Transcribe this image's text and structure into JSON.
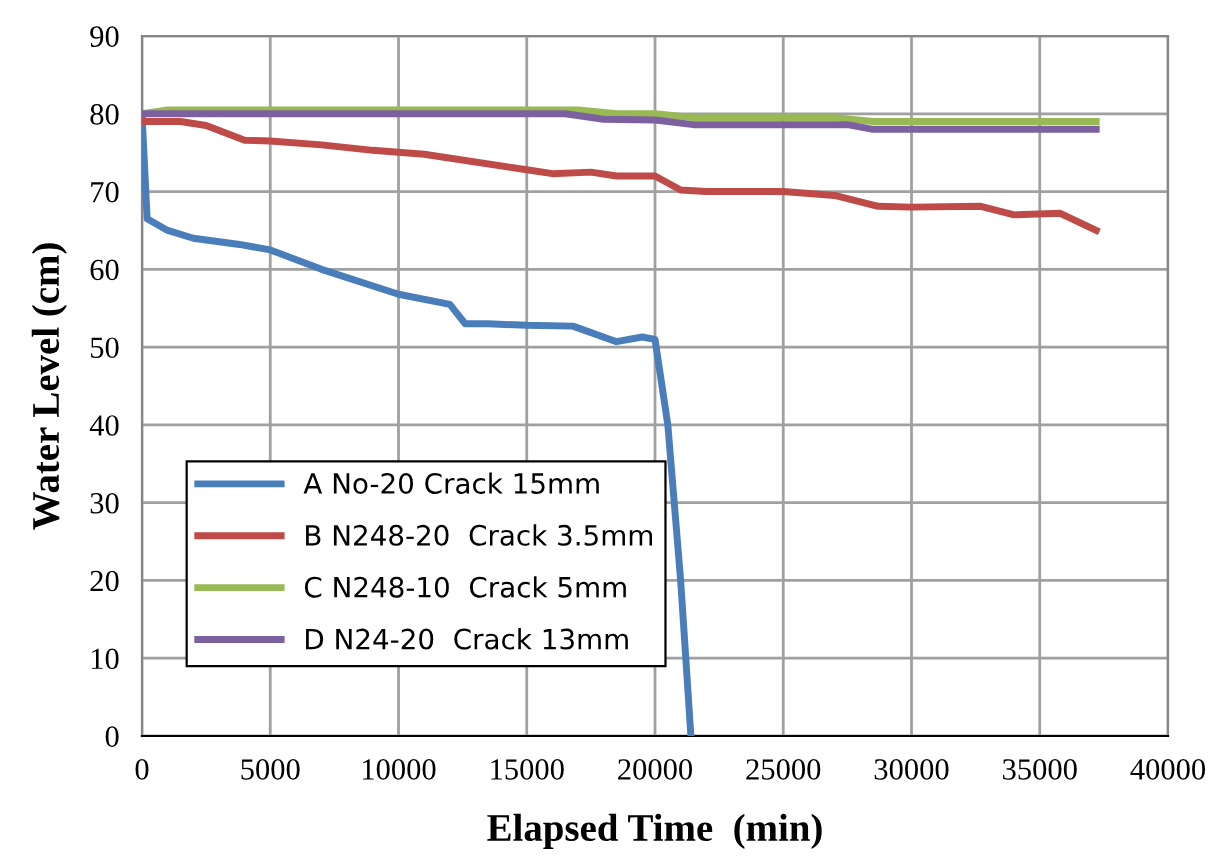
{
  "chart_data": {
    "type": "line",
    "xlabel": "Elapsed Time  (min)",
    "ylabel": "Water Level (cm)",
    "xlim": [
      0,
      40000
    ],
    "ylim": [
      0,
      90
    ],
    "xticks": [
      0,
      5000,
      10000,
      15000,
      20000,
      25000,
      30000,
      35000,
      40000
    ],
    "yticks": [
      0,
      10,
      20,
      30,
      40,
      50,
      60,
      70,
      80,
      90
    ],
    "grid": true,
    "legend": "bottom left",
    "marker": "none",
    "line_style": "solid",
    "series": [
      {
        "name": "A No-20 Crack 15mm",
        "color": "#4a7ebb",
        "x": [
          0,
          200,
          1000,
          2000,
          3800,
          5000,
          7000,
          10000,
          12000,
          12600,
          13500,
          15000,
          16800,
          18500,
          19500,
          20000,
          20500,
          21000,
          21400
        ],
        "values": [
          80,
          66.5,
          65,
          64,
          63.2,
          62.5,
          60,
          56.8,
          55.5,
          53,
          53,
          52.8,
          52.7,
          50.7,
          51.3,
          51,
          40,
          20,
          0
        ]
      },
      {
        "name": "B N248-20  Crack 3.5mm",
        "color": "#be4b48",
        "x": [
          0,
          1500,
          2500,
          4000,
          5000,
          7000,
          9000,
          11000,
          15000,
          16000,
          17500,
          18500,
          20000,
          21000,
          22000,
          25000,
          27000,
          28700,
          30000,
          32700,
          34000,
          35800,
          37200
        ],
        "values": [
          79,
          79,
          78.5,
          76.6,
          76.5,
          76,
          75.3,
          74.8,
          72.8,
          72.3,
          72.5,
          72,
          72,
          70.2,
          70,
          70,
          69.5,
          68.1,
          68,
          68.1,
          67,
          67.2,
          65
        ]
      },
      {
        "name": "C N248-10  Crack 5mm",
        "color": "#98b954",
        "x": [
          0,
          1000,
          17000,
          18500,
          20000,
          21500,
          27000,
          28500,
          37200
        ],
        "values": [
          80,
          80.5,
          80.5,
          80,
          80,
          79.5,
          79.5,
          79,
          79
        ]
      },
      {
        "name": "D N24-20  Crack 13mm",
        "color": "#7d60a0",
        "x": [
          0,
          16500,
          18000,
          20000,
          21500,
          27500,
          28500,
          37200
        ],
        "values": [
          80,
          80,
          79.3,
          79.2,
          78.6,
          78.6,
          78,
          78
        ]
      }
    ]
  }
}
